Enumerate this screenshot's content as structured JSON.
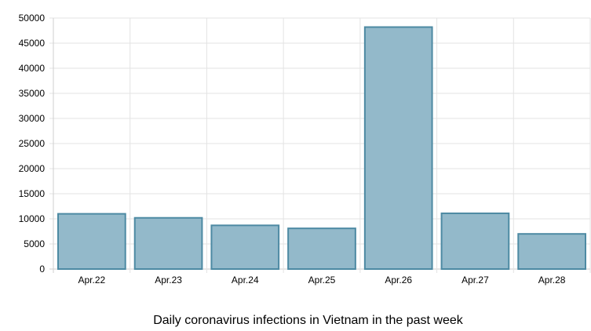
{
  "chart_data": {
    "type": "bar",
    "title": "Daily coronavirus infections in Vietnam in the past week",
    "xlabel": "",
    "ylabel": "",
    "categories": [
      "Apr.22",
      "Apr.23",
      "Apr.24",
      "Apr.25",
      "Apr.26",
      "Apr.27",
      "Apr.28"
    ],
    "values": [
      11000,
      10200,
      8700,
      8100,
      48200,
      11100,
      7000
    ],
    "ylim": [
      0,
      50000
    ],
    "yticks": [
      0,
      5000,
      10000,
      15000,
      20000,
      25000,
      30000,
      35000,
      40000,
      45000,
      50000
    ],
    "grid": true,
    "legend": "none",
    "colors": {
      "bar_fill": "#93b9ca",
      "bar_stroke": "#4d8aa3",
      "grid": "#e3e3e3",
      "axis": "#cfcfcf"
    }
  }
}
